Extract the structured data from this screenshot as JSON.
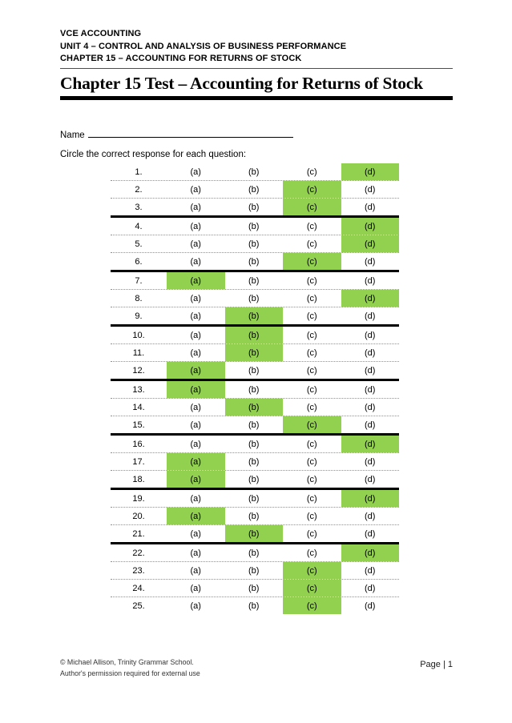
{
  "colors": {
    "highlight": "#92d050",
    "rule": "#000000"
  },
  "header": {
    "lines": [
      "VCE ACCOUNTING",
      "UNIT 4 – CONTROL AND ANALYSIS OF BUSINESS PERFORMANCE",
      "CHAPTER 15 – ACCOUNTING FOR RETURNS OF STOCK"
    ]
  },
  "title": "Chapter 15 Test – Accounting for Returns of Stock",
  "form": {
    "name_label": "Name",
    "instructions": "Circle the correct response for each question:"
  },
  "answer_table": {
    "options": [
      "a",
      "b",
      "c",
      "d"
    ],
    "option_labels": [
      "(a)",
      "(b)",
      "(c)",
      "(d)"
    ],
    "group_breaks_after": [
      3,
      6,
      9,
      12,
      15,
      18,
      21
    ],
    "rows": [
      {
        "number": "1.",
        "answer": "d"
      },
      {
        "number": "2.",
        "answer": "c"
      },
      {
        "number": "3.",
        "answer": "c"
      },
      {
        "number": "4.",
        "answer": "d"
      },
      {
        "number": "5.",
        "answer": "d"
      },
      {
        "number": "6.",
        "answer": "c"
      },
      {
        "number": "7.",
        "answer": "a"
      },
      {
        "number": "8.",
        "answer": "d"
      },
      {
        "number": "9.",
        "answer": "b"
      },
      {
        "number": "10.",
        "answer": "b"
      },
      {
        "number": "11.",
        "answer": "b"
      },
      {
        "number": "12.",
        "answer": "a"
      },
      {
        "number": "13.",
        "answer": "a"
      },
      {
        "number": "14.",
        "answer": "b"
      },
      {
        "number": "15.",
        "answer": "c"
      },
      {
        "number": "16.",
        "answer": "d"
      },
      {
        "number": "17.",
        "answer": "a"
      },
      {
        "number": "18.",
        "answer": "a"
      },
      {
        "number": "19.",
        "answer": "d"
      },
      {
        "number": "20.",
        "answer": "a"
      },
      {
        "number": "21.",
        "answer": "b"
      },
      {
        "number": "22.",
        "answer": "d"
      },
      {
        "number": "23.",
        "answer": "c"
      },
      {
        "number": "24.",
        "answer": "c"
      },
      {
        "number": "25.",
        "answer": "c"
      }
    ]
  },
  "footer": {
    "left_line1": "© Michael Allison, Trinity Grammar School.",
    "left_line2": "Author's permission required for external use",
    "page_label": "Page | 1"
  }
}
